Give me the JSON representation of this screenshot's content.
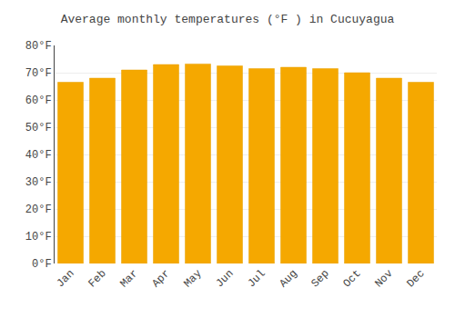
{
  "chart_data": {
    "type": "bar",
    "title": "Average monthly temperatures (°F ) in Cucuyagua",
    "categories": [
      "Jan",
      "Feb",
      "Mar",
      "Apr",
      "May",
      "Jun",
      "Jul",
      "Aug",
      "Sep",
      "Oct",
      "Nov",
      "Dec"
    ],
    "values": [
      66.5,
      68.0,
      71.0,
      73.0,
      73.2,
      72.5,
      71.5,
      72.0,
      71.5,
      70.0,
      68.0,
      66.5
    ],
    "color": "#F5A800",
    "ylim": [
      0,
      80
    ],
    "yticks": [
      {
        "value": 0,
        "label": "0°F"
      },
      {
        "value": 10,
        "label": "10°F"
      },
      {
        "value": 20,
        "label": "20°F"
      },
      {
        "value": 30,
        "label": "30°F"
      },
      {
        "value": 40,
        "label": "40°F"
      },
      {
        "value": 50,
        "label": "50°F"
      },
      {
        "value": 60,
        "label": "60°F"
      },
      {
        "value": 70,
        "label": "70°F"
      },
      {
        "value": 80,
        "label": "80°F"
      }
    ],
    "grid": true
  }
}
